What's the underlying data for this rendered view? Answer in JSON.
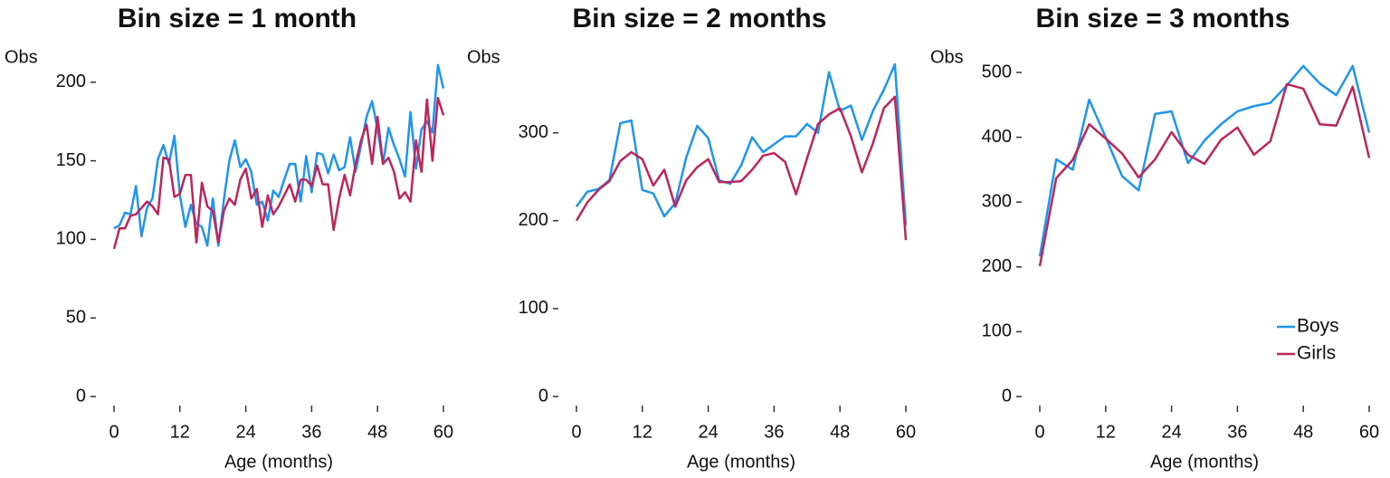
{
  "chart_data": [
    {
      "type": "line",
      "title": "Bin size = 1 month",
      "y_label": "Obs",
      "x_label": "Age (months)",
      "x": [
        0,
        1,
        2,
        3,
        4,
        5,
        6,
        7,
        8,
        9,
        10,
        11,
        12,
        13,
        14,
        15,
        16,
        17,
        18,
        19,
        20,
        21,
        22,
        23,
        24,
        25,
        26,
        27,
        28,
        29,
        30,
        31,
        32,
        33,
        34,
        35,
        36,
        37,
        38,
        39,
        40,
        41,
        42,
        43,
        44,
        45,
        46,
        47,
        48,
        49,
        50,
        51,
        52,
        53,
        54,
        55,
        56,
        57,
        58,
        59,
        60
      ],
      "series": [
        {
          "color": "#1e96f0",
          "values": [
            107,
            109,
            117,
            116,
            134,
            102,
            120,
            126,
            151,
            160,
            148,
            166,
            128,
            108,
            122,
            110,
            108,
            96,
            126,
            96,
            125,
            150,
            163,
            146,
            151,
            143,
            122,
            124,
            112,
            131,
            127,
            138,
            148,
            148,
            124,
            153,
            130,
            155,
            154,
            142,
            154,
            144,
            146,
            165,
            143,
            160,
            178,
            188,
            170,
            148,
            171,
            160,
            151,
            140,
            181,
            145,
            170,
            175,
            168,
            211,
            196
          ]
        },
        {
          "color": "#c0245c",
          "values": [
            94,
            107,
            107,
            115,
            116,
            120,
            124,
            121,
            116,
            152,
            151,
            127,
            129,
            141,
            141,
            98,
            136,
            121,
            118,
            98,
            118,
            126,
            122,
            138,
            145,
            126,
            132,
            108,
            128,
            116,
            121,
            128,
            135,
            124,
            138,
            138,
            134,
            147,
            135,
            135,
            106,
            126,
            141,
            128,
            148,
            163,
            173,
            148,
            178,
            148,
            152,
            143,
            126,
            130,
            124,
            163,
            143,
            189,
            150,
            190,
            179
          ]
        }
      ],
      "xlim": [
        0,
        60
      ],
      "ylim": [
        0,
        212
      ],
      "xticks": [
        0,
        12,
        24,
        36,
        48,
        60
      ],
      "yticks": [
        0,
        50,
        100,
        150,
        200
      ]
    },
    {
      "type": "line",
      "title": "Bin size = 2 months",
      "y_label": "Obs",
      "x_label": "Age (months)",
      "x": [
        0,
        2,
        4,
        6,
        8,
        10,
        12,
        14,
        16,
        18,
        20,
        22,
        24,
        26,
        28,
        30,
        32,
        34,
        36,
        38,
        40,
        42,
        44,
        46,
        48,
        50,
        52,
        54,
        56,
        58,
        60
      ],
      "series": [
        {
          "color": "#1e96f0",
          "values": [
            216,
            233,
            236,
            246,
            311,
            314,
            235,
            231,
            205,
            220,
            272,
            308,
            294,
            246,
            242,
            263,
            295,
            278,
            287,
            296,
            296,
            310,
            300,
            369,
            325,
            331,
            292,
            325,
            349,
            378,
            195
          ]
        },
        {
          "color": "#c0245c",
          "values": [
            200,
            221,
            235,
            245,
            268,
            278,
            270,
            240,
            258,
            216,
            246,
            261,
            270,
            244,
            244,
            245,
            258,
            274,
            277,
            267,
            230,
            271,
            310,
            321,
            328,
            296,
            255,
            288,
            328,
            341,
            178
          ]
        }
      ],
      "xlim": [
        0,
        60
      ],
      "ylim": [
        0,
        379
      ],
      "xticks": [
        0,
        12,
        24,
        36,
        48,
        60
      ],
      "yticks": [
        0,
        100,
        200,
        300
      ]
    },
    {
      "type": "line",
      "title": "Bin size = 3 months",
      "y_label": "Obs",
      "x_label": "Age (months)",
      "x": [
        0,
        3,
        6,
        9,
        12,
        15,
        18,
        21,
        24,
        27,
        30,
        33,
        36,
        39,
        42,
        45,
        48,
        51,
        54,
        57,
        60
      ],
      "series": [
        {
          "name": "Boys",
          "color": "#1e96f0",
          "values": [
            216,
            366,
            350,
            458,
            400,
            340,
            318,
            436,
            440,
            360,
            395,
            420,
            440,
            448,
            453,
            480,
            510,
            483,
            465,
            510,
            407
          ]
        },
        {
          "name": "Girls",
          "color": "#c0245c",
          "values": [
            201,
            337,
            365,
            420,
            398,
            375,
            338,
            366,
            408,
            373,
            359,
            396,
            415,
            373,
            394,
            482,
            475,
            420,
            418,
            478,
            368
          ]
        }
      ],
      "xlim": [
        0,
        60
      ],
      "ylim": [
        0,
        514
      ],
      "xticks": [
        0,
        12,
        24,
        36,
        48,
        60
      ],
      "yticks": [
        0,
        100,
        200,
        300,
        400,
        500
      ],
      "legend": "bottom-right"
    }
  ]
}
